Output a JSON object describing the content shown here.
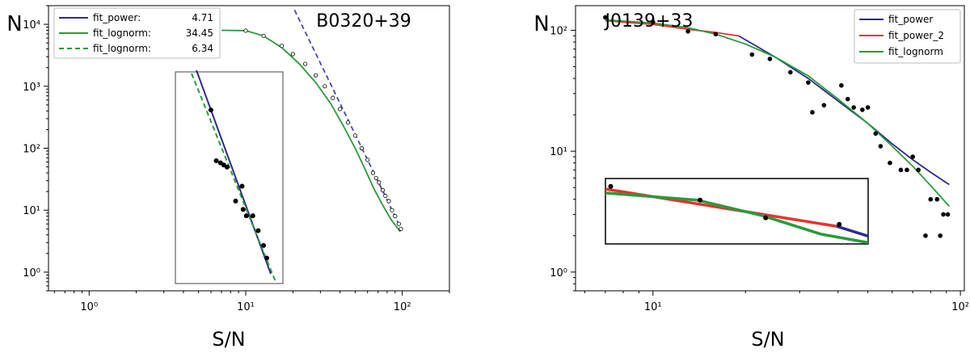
{
  "figure": {
    "ylabel": "N",
    "xlabel": "S/N"
  },
  "chart_data": [
    {
      "type": "line",
      "title": "B0320+39",
      "xlabel": "S/N",
      "ylabel": "N",
      "xscale": "log",
      "yscale": "log",
      "xlim": [
        0.55,
        200
      ],
      "ylim": [
        0.5,
        20000
      ],
      "xticks": [
        {
          "value": 1,
          "label": "10⁰"
        },
        {
          "value": 10,
          "label": "10¹"
        },
        {
          "value": 100,
          "label": "10²"
        }
      ],
      "yticks": [
        {
          "value": 1,
          "label": "10⁰"
        },
        {
          "value": 10,
          "label": "10¹"
        },
        {
          "value": 100,
          "label": "10²"
        },
        {
          "value": 1000,
          "label": "10³"
        },
        {
          "value": 10000,
          "label": "10⁴"
        }
      ],
      "legend_position": "top-left",
      "legend": [
        {
          "name": "fit_power:",
          "value": "4.71",
          "color": "#2b2b8c",
          "dash": "solid"
        },
        {
          "name": "fit_lognorm:",
          "value": "34.45",
          "color": "#2a9a3a",
          "dash": "solid"
        },
        {
          "name": "fit_lognorm:",
          "value": "6.34",
          "color": "#2a9a3a",
          "dash": "dashed"
        }
      ],
      "series": [
        {
          "name": "fit_power",
          "style": "dashed",
          "color": "#4646b4",
          "x": [
            20.5,
            95
          ],
          "y": [
            17000,
            6
          ]
        },
        {
          "name": "fit_lognorm",
          "style": "solid",
          "color": "#2a9a3a",
          "x": [
            7,
            10,
            13,
            17,
            22,
            28,
            35,
            42,
            50,
            58,
            66,
            75,
            85,
            97
          ],
          "y": [
            8000,
            7900,
            6500,
            4200,
            2300,
            1150,
            520,
            230,
            100,
            45,
            22,
            12,
            7,
            4.5
          ]
        },
        {
          "name": "data",
          "type": "scatter",
          "color": "#000000",
          "x": [
            10,
            13,
            17,
            20,
            24,
            28,
            32,
            36,
            40,
            45,
            50,
            55,
            60,
            65,
            68,
            71,
            75,
            78,
            82,
            86,
            90,
            95,
            98
          ],
          "y": [
            7900,
            6500,
            4500,
            3300,
            2300,
            1500,
            1000,
            650,
            430,
            260,
            160,
            100,
            65,
            40,
            33,
            28,
            21,
            17,
            14,
            10,
            8,
            6,
            5
          ]
        }
      ],
      "inset": {
        "border": true,
        "series": [
          {
            "name": "fit_power",
            "style": "solid",
            "color": "#2b2b8c"
          },
          {
            "name": "fit_lognorm",
            "style": "dashed",
            "color": "#2a9a3a"
          }
        ],
        "points_rel": [
          [
            0.33,
            0.18
          ],
          [
            0.38,
            0.42
          ],
          [
            0.42,
            0.43
          ],
          [
            0.45,
            0.44
          ],
          [
            0.48,
            0.45
          ],
          [
            0.56,
            0.61
          ],
          [
            0.62,
            0.54
          ],
          [
            0.63,
            0.65
          ],
          [
            0.66,
            0.68
          ],
          [
            0.72,
            0.68
          ],
          [
            0.77,
            0.75
          ],
          [
            0.82,
            0.82
          ],
          [
            0.85,
            0.88
          ]
        ]
      }
    },
    {
      "type": "line",
      "title": "J0139+33",
      "xlabel": "S/N",
      "ylabel": "N",
      "xscale": "log",
      "yscale": "log",
      "xlim": [
        5.6,
        103
      ],
      "ylim": [
        0.7,
        160
      ],
      "xticks": [
        {
          "value": 10,
          "label": "10¹"
        },
        {
          "value": 100,
          "label": "10²"
        }
      ],
      "yticks": [
        {
          "value": 1,
          "label": "10⁰"
        },
        {
          "value": 10,
          "label": "10¹"
        },
        {
          "value": 100,
          "label": "10²"
        }
      ],
      "legend_position": "top-right",
      "legend": [
        {
          "name": "fit_power",
          "color": "#2b2b8c",
          "dash": "solid"
        },
        {
          "name": "fit_power_2",
          "color": "#e8332a",
          "dash": "solid"
        },
        {
          "name": "fit_lognorm",
          "color": "#2a9a3a",
          "dash": "solid"
        }
      ],
      "series": [
        {
          "name": "fit_power_2",
          "style": "solid",
          "color": "#e8332a",
          "x": [
            7,
            10,
            13,
            16,
            19
          ],
          "y": [
            120,
            112,
            102,
            96,
            90
          ]
        },
        {
          "name": "fit_power",
          "style": "solid",
          "color": "#2b2b8c",
          "x": [
            19,
            25,
            32,
            40,
            50,
            60,
            70,
            80,
            92
          ],
          "y": [
            90,
            60,
            40,
            26,
            17,
            11.5,
            8.5,
            6.7,
            5.3
          ]
        },
        {
          "name": "fit_lognorm",
          "style": "solid",
          "color": "#2a9a3a",
          "x": [
            7,
            10,
            13,
            16,
            20,
            25,
            32,
            40,
            50,
            60,
            70,
            80,
            92
          ],
          "y": [
            122,
            115,
            105,
            93,
            77,
            60,
            42,
            27,
            17,
            11,
            7.5,
            5.2,
            3.5
          ]
        },
        {
          "name": "data",
          "type": "scatter",
          "color": "#000000",
          "x": [
            7,
            10,
            13,
            16,
            21,
            24,
            28,
            32,
            33,
            36,
            41,
            43,
            45,
            48,
            50,
            53,
            55,
            59,
            64,
            67,
            70,
            73,
            77,
            80,
            84,
            86,
            88,
            91
          ],
          "y": [
            128,
            117,
            98,
            93,
            63,
            58,
            45,
            37,
            21,
            24,
            35,
            27,
            23,
            22,
            23,
            14,
            11,
            8,
            7,
            7,
            9,
            7,
            2,
            4,
            4,
            2,
            3,
            3
          ]
        }
      ],
      "inset": {
        "border": true,
        "series": [
          {
            "name": "fit_power_2",
            "style": "solid",
            "color": "#e8332a",
            "rel": [
              [
                0.0,
                0.16
              ],
              [
                0.88,
                0.73
              ]
            ]
          },
          {
            "name": "fit_power",
            "style": "solid",
            "color": "#2b2b8c",
            "rel": [
              [
                0.88,
                0.73
              ],
              [
                1.0,
                0.88
              ]
            ]
          },
          {
            "name": "fit_lognorm",
            "style": "solid",
            "color": "#2a9a3a",
            "rel": [
              [
                0.0,
                0.22
              ],
              [
                0.35,
                0.33
              ],
              [
                0.6,
                0.57
              ],
              [
                0.82,
                0.85
              ],
              [
                1.0,
                0.98
              ]
            ]
          }
        ],
        "points_rel": [
          [
            0.02,
            0.12
          ],
          [
            0.36,
            0.33
          ],
          [
            0.61,
            0.6
          ],
          [
            0.89,
            0.7
          ]
        ]
      }
    }
  ]
}
